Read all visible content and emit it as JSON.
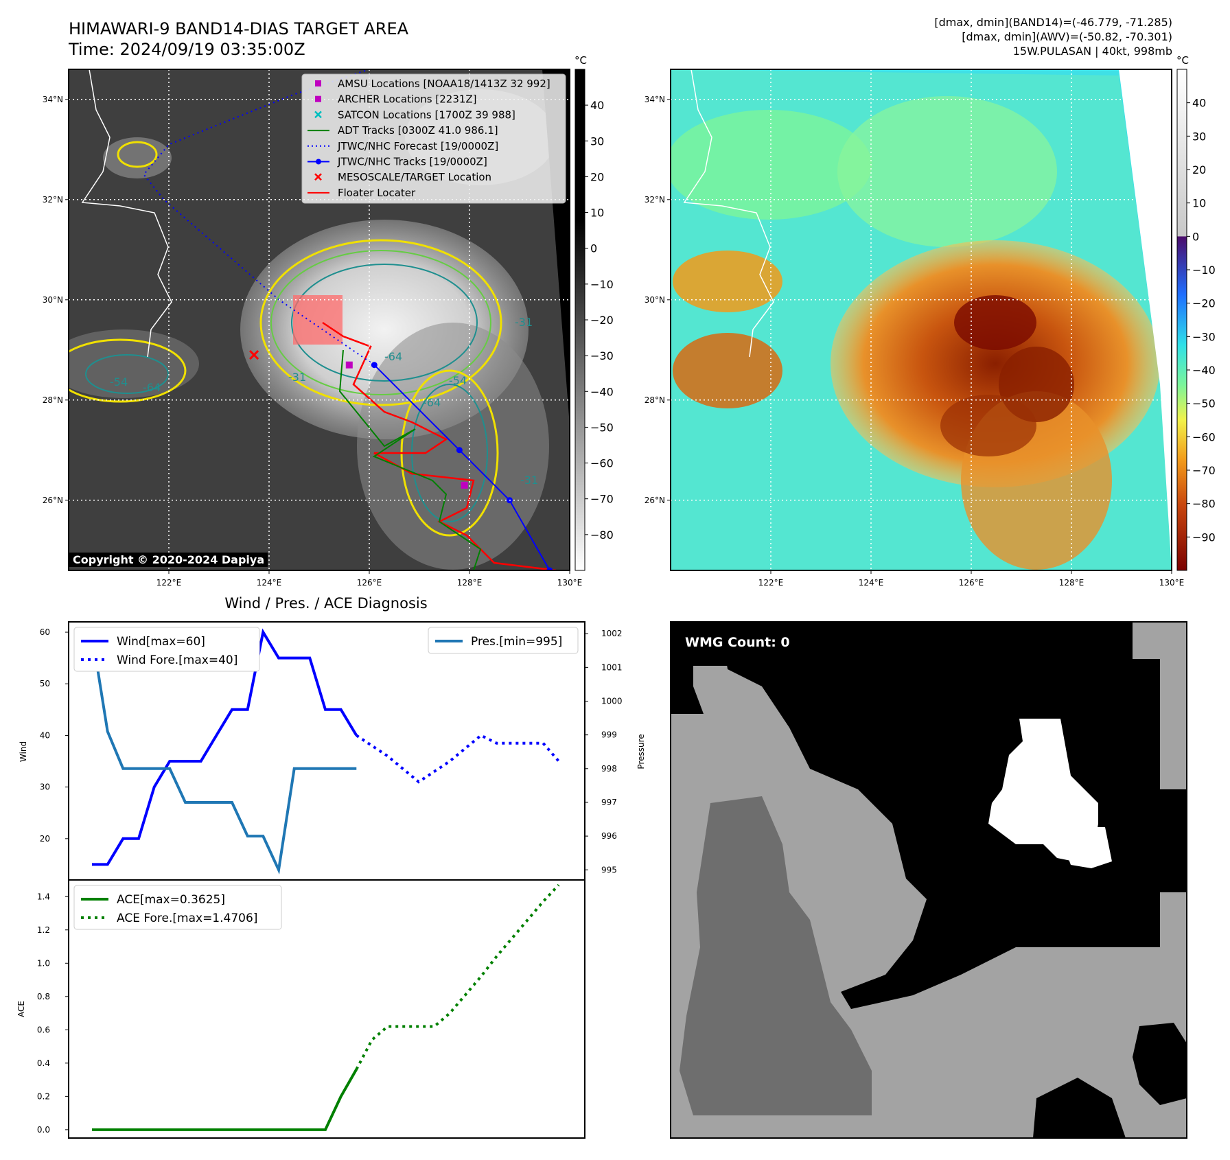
{
  "header": {
    "title_line1": "HIMAWARI-9 BAND14-DIAS TARGET AREA",
    "title_line2": "Time: 2024/09/19 03:35:00Z",
    "right_line1": "[dmax, dmin](BAND14)=(-46.779, -71.285)",
    "right_line2": "[dmax, dmin](AWV)=(-50.82, -70.301)",
    "right_line3": "15W.PULASAN | 40kt, 998mb"
  },
  "copyright": "Copyright © 2020-2024 Dapiya",
  "wmg_label": "WMG Count: 0",
  "colorbar_unit": "°C",
  "colors": {
    "wind": "#0000ff",
    "pres": "#1f77b4",
    "ace": "#008000",
    "amsu": "#bf00bf",
    "satcon": "#00bfbf",
    "adt": "#008000",
    "track": "#0000ff",
    "target": "#ff0000",
    "floater": "#ff0000"
  },
  "chart_data": [
    {
      "type": "map",
      "name": "BAND14 map",
      "lon_ticks": [
        "122°E",
        "124°E",
        "126°E",
        "128°E",
        "130°E"
      ],
      "lat_ticks": [
        "26°N",
        "28°N",
        "30°N",
        "32°N",
        "34°N"
      ],
      "xlim": [
        120,
        130
      ],
      "ylim": [
        24.6,
        34.6
      ],
      "legend": [
        {
          "label": "AMSU Locations [NOAA18/1413Z 32 992]",
          "marker": "square",
          "color": "#bf00bf"
        },
        {
          "label": "ARCHER Locations [2231Z]",
          "marker": "square",
          "color": "#bf00bf"
        },
        {
          "label": "SATCON Locations [1700Z 39 988]",
          "marker": "x",
          "color": "#00bfbf"
        },
        {
          "label": "ADT Tracks [0300Z 41.0 986.1]",
          "marker": "line",
          "color": "#008000"
        },
        {
          "label": "JTWC/NHC Forecast [19/0000Z]",
          "marker": "dotted",
          "color": "#0000ff"
        },
        {
          "label": "JTWC/NHC Tracks [19/0000Z]",
          "marker": "line-dot",
          "color": "#0000ff"
        },
        {
          "label": "MESOSCALE/TARGET Location",
          "marker": "x",
          "color": "#ff0000"
        },
        {
          "label": "Floater Locater",
          "marker": "line",
          "color": "#ff0000"
        }
      ],
      "contour_labels": [
        "-31",
        "-64",
        "-54",
        "-64",
        "-31",
        "-54",
        "-64",
        "-31"
      ],
      "colorbar": {
        "unit": "°C",
        "ticks": [
          "40",
          "30",
          "20",
          "10",
          "0",
          "−10",
          "−20",
          "−30",
          "−40",
          "−50",
          "−60",
          "−70",
          "−80"
        ],
        "range": [
          -90,
          50
        ]
      },
      "jtwc_track": [
        [
          129.6,
          24.6
        ],
        [
          128.8,
          26.0
        ],
        [
          127.8,
          27.0
        ],
        [
          126.1,
          28.7
        ]
      ],
      "jtwc_forecast": [
        [
          126.1,
          28.7
        ],
        [
          124.2,
          30.0
        ],
        [
          121.9,
          32.0
        ],
        [
          121.5,
          32.5
        ],
        [
          122.0,
          33.1
        ],
        [
          124.5,
          34.1
        ],
        [
          126.0,
          34.6
        ]
      ],
      "target_location": [
        123.7,
        28.9
      ],
      "amsu_location": [
        127.9,
        26.3
      ],
      "archer_location": [
        125.6,
        28.7
      ]
    },
    {
      "type": "map",
      "name": "AWV map",
      "lon_ticks": [
        "122°E",
        "124°E",
        "126°E",
        "128°E",
        "130°E"
      ],
      "lat_ticks": [
        "26°N",
        "28°N",
        "30°N",
        "32°N",
        "34°N"
      ],
      "xlim": [
        120,
        130
      ],
      "ylim": [
        24.6,
        34.6
      ],
      "colorbar": {
        "unit": "°C",
        "ticks": [
          "40",
          "30",
          "20",
          "10",
          "0",
          "−10",
          "−20",
          "−30",
          "−40",
          "−50",
          "−60",
          "−70",
          "−80",
          "−90"
        ],
        "range": [
          -100,
          50
        ]
      }
    },
    {
      "type": "line",
      "title": "Wind / Pres. / ACE Diagnosis",
      "ylabel": "Wind",
      "y2label": "Pressure",
      "ylim": [
        12,
        62
      ],
      "y2lim": [
        994.7,
        1002.35
      ],
      "yticks": [
        20,
        30,
        40,
        50,
        60
      ],
      "y2ticks": [
        995,
        996,
        997,
        998,
        999,
        1000,
        1001,
        1002
      ],
      "series": [
        {
          "name": "Wind[max=60]",
          "axis": "left",
          "style": "solid",
          "x": [
            0,
            1,
            2,
            3,
            4,
            5,
            6,
            7,
            8,
            9,
            10,
            11,
            12,
            13,
            14,
            15,
            16,
            17
          ],
          "values": [
            15,
            15,
            20,
            20,
            30,
            35,
            35,
            35,
            40,
            45,
            45,
            60,
            55,
            55,
            55,
            45,
            45,
            40
          ]
        },
        {
          "name": "Wind Fore.[max=40]",
          "axis": "left",
          "style": "dotted",
          "x": [
            17,
            18,
            19,
            20,
            21,
            22,
            23,
            24,
            25,
            26,
            27,
            28,
            29,
            30
          ],
          "values": [
            40,
            38,
            36,
            33.5,
            31,
            33,
            35,
            37.5,
            40,
            38.5,
            38.5,
            38.5,
            38.5,
            35
          ]
        },
        {
          "name": "Pres.[min=995]",
          "axis": "right",
          "style": "solid",
          "x": [
            0,
            1,
            2,
            3,
            4,
            5,
            6,
            7,
            8,
            9,
            10,
            11,
            12,
            13,
            14,
            15,
            16,
            17
          ],
          "values": [
            1002,
            999.1,
            998,
            998,
            998,
            998,
            997,
            997,
            997,
            997,
            996,
            996,
            995,
            998,
            998,
            998,
            998,
            998
          ]
        }
      ]
    },
    {
      "type": "line",
      "ylabel": "ACE",
      "ylim": [
        -0.05,
        1.5
      ],
      "yticks": [
        0.0,
        0.2,
        0.4,
        0.6,
        0.8,
        1.0,
        1.2,
        1.4
      ],
      "ytick_labels": [
        "0.0",
        "0.2",
        "0.4",
        "0.6",
        "0.8",
        "1.0",
        "1.2",
        "1.4"
      ],
      "series": [
        {
          "name": "ACE[max=0.3625]",
          "style": "solid",
          "x": [
            0,
            15,
            16,
            17
          ],
          "values": [
            0,
            0,
            0.2,
            0.3625
          ]
        },
        {
          "name": "ACE Fore.[max=1.4706]",
          "style": "dotted",
          "x": [
            17,
            18,
            19,
            20,
            21,
            22,
            23,
            24,
            25,
            26,
            27,
            28,
            29,
            30
          ],
          "values": [
            0.3625,
            0.54,
            0.62,
            0.62,
            0.62,
            0.62,
            0.7,
            0.81,
            0.92,
            1.04,
            1.15,
            1.26,
            1.37,
            1.47
          ]
        }
      ]
    },
    {
      "type": "heatmap",
      "name": "WMG classification",
      "label": "WMG Count: 0",
      "levels": [
        "black",
        "dark-gray",
        "light-gray",
        "white"
      ]
    }
  ]
}
